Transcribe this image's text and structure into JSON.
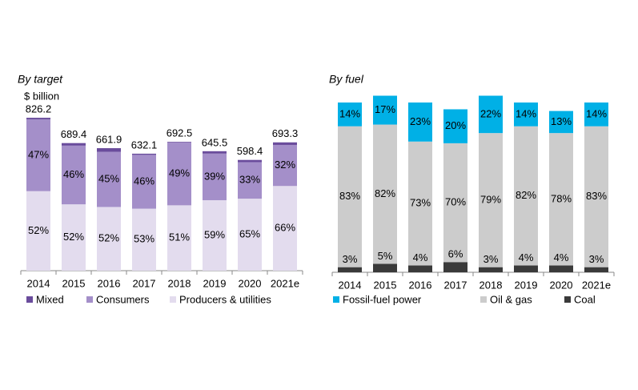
{
  "chart_data": [
    {
      "type": "bar",
      "stacked": true,
      "title": "By target",
      "ylabel": "$ billion",
      "categories": [
        "2014",
        "2015",
        "2016",
        "2017",
        "2018",
        "2019",
        "2020",
        "2021e"
      ],
      "values": [
        826.2,
        689.4,
        661.9,
        632.1,
        692.5,
        645.5,
        598.4,
        693.3
      ],
      "ylim": [
        0,
        900
      ],
      "series": [
        {
          "name": "Mixed",
          "color": "#6a4c9c",
          "values": [
            1,
            2,
            3,
            1,
            0.5,
            2,
            2,
            2
          ]
        },
        {
          "name": "Consumers",
          "color": "#a48fc9",
          "values": [
            47,
            46,
            45,
            46,
            49,
            39,
            33,
            32
          ],
          "value_labels": [
            "47%",
            "46%",
            "45%",
            "46%",
            "49%",
            "39%",
            "33%",
            "32%"
          ]
        },
        {
          "name": "Producers & utilities",
          "color": "#e3dcee",
          "values": [
            52,
            52,
            52,
            53,
            51,
            59,
            65,
            66
          ],
          "value_labels": [
            "52%",
            "52%",
            "52%",
            "53%",
            "51%",
            "59%",
            "65%",
            "66%"
          ]
        }
      ]
    },
    {
      "type": "bar",
      "stacked": true,
      "title": "By fuel",
      "categories": [
        "2014",
        "2015",
        "2016",
        "2017",
        "2018",
        "2019",
        "2020",
        "2021e"
      ],
      "ylim": [
        0,
        100
      ],
      "series": [
        {
          "name": "Fossil-fuel power",
          "color": "#00b0e6",
          "values": [
            14,
            17,
            23,
            20,
            22,
            14,
            13,
            14
          ],
          "value_labels": [
            "14%",
            "17%",
            "23%",
            "20%",
            "22%",
            "14%",
            "13%",
            "14%"
          ]
        },
        {
          "name": "Oil & gas",
          "color": "#cccccc",
          "values": [
            83,
            82,
            73,
            70,
            79,
            82,
            78,
            83
          ],
          "value_labels": [
            "83%",
            "82%",
            "73%",
            "70%",
            "79%",
            "82%",
            "78%",
            "83%"
          ]
        },
        {
          "name": "Coal",
          "color": "#3a3a3a",
          "values": [
            3,
            5,
            4,
            6,
            3,
            4,
            4,
            3
          ],
          "value_labels": [
            "3%",
            "5%",
            "4%",
            "6%",
            "3%",
            "4%",
            "4%",
            "3%"
          ]
        }
      ]
    }
  ]
}
